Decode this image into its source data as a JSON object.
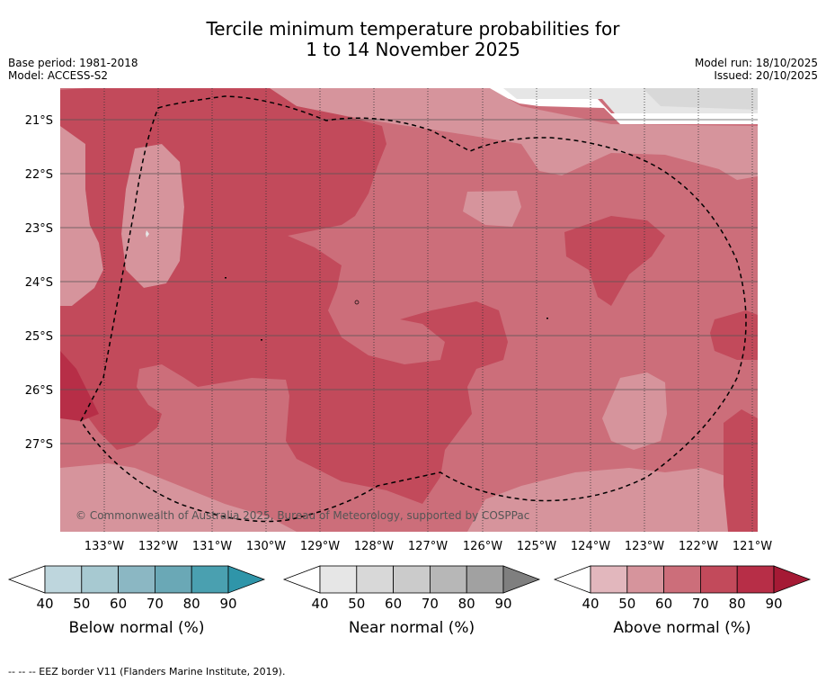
{
  "title": {
    "line1": "Tercile minimum temperature probabilities for",
    "line2": "1 to 14 November 2025"
  },
  "meta": {
    "base_period": "Base period: 1981-2018",
    "model": "Model: ACCESS-S2",
    "model_run": "Model run: 18/10/2025",
    "issued": "Issued: 20/10/2025"
  },
  "map": {
    "lat_labels": [
      "21°S",
      "22°S",
      "23°S",
      "24°S",
      "25°S",
      "26°S",
      "27°S"
    ],
    "lon_labels": [
      "133°W",
      "132°W",
      "131°W",
      "130°W",
      "129°W",
      "128°W",
      "127°W",
      "126°W",
      "125°W",
      "124°W",
      "123°W",
      "122°W",
      "121°W"
    ],
    "copyright": "© Commonwealth of Australia 2025, Bureau of Meteorology, supported by COSPPac"
  },
  "colorbars": [
    {
      "title": "Below normal (%)",
      "ticks": [
        "40",
        "50",
        "60",
        "70",
        "80",
        "90"
      ],
      "colors": [
        "#ffffff",
        "#bed6dd",
        "#a7c9d1",
        "#8bb7c3",
        "#6aa8b6",
        "#4aa0b0",
        "#2f95a9"
      ]
    },
    {
      "title": "Near normal (%)",
      "ticks": [
        "40",
        "50",
        "60",
        "70",
        "80",
        "90"
      ],
      "colors": [
        "#ffffff",
        "#e6e6e6",
        "#d8d8d8",
        "#cbcbcb",
        "#b7b7b7",
        "#a1a1a1",
        "#7f7f7f"
      ]
    },
    {
      "title": "Above normal (%)",
      "ticks": [
        "40",
        "50",
        "60",
        "70",
        "80",
        "90"
      ],
      "colors": [
        "#ffffff",
        "#e2b7bd",
        "#d6949c",
        "#cc6e7a",
        "#c24a5b",
        "#b72e47",
        "#a51a35"
      ]
    }
  ],
  "footer": "--  --  -- EEZ border V11 (Flanders Marine Institute, 2019)."
}
